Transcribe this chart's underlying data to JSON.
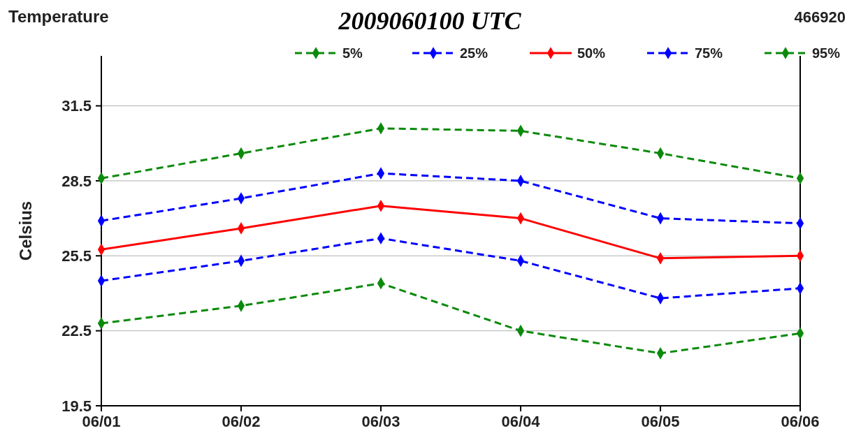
{
  "chart_data": {
    "type": "line",
    "title": "2009060100 UTC",
    "ylabel": "Celsius",
    "annotations": [
      "Temperature",
      "466920"
    ],
    "categories": [
      "06/01",
      "06/02",
      "06/03",
      "06/04",
      "06/05",
      "06/06"
    ],
    "series": [
      {
        "name": "5%",
        "color": "#0b8a0b",
        "line_style": "dashed",
        "values": [
          22.8,
          23.5,
          24.4,
          22.5,
          21.6,
          22.4
        ]
      },
      {
        "name": "25%",
        "color": "#0000ff",
        "line_style": "dashed",
        "values": [
          24.5,
          25.3,
          26.2,
          25.3,
          23.8,
          24.2
        ]
      },
      {
        "name": "50%",
        "color": "#ff0000",
        "line_style": "solid",
        "values": [
          25.75,
          26.6,
          27.5,
          27.0,
          25.4,
          25.5
        ]
      },
      {
        "name": "75%",
        "color": "#0000ff",
        "line_style": "dashed",
        "values": [
          26.9,
          27.8,
          28.8,
          28.5,
          27.0,
          26.8
        ]
      },
      {
        "name": "95%",
        "color": "#0b8a0b",
        "line_style": "dashed",
        "values": [
          28.6,
          29.6,
          30.6,
          30.5,
          29.6,
          28.6
        ]
      }
    ],
    "ylim": [
      19.5,
      33.5
    ],
    "yticks": [
      19.5,
      22.5,
      25.5,
      28.5,
      31.5
    ],
    "grid": "y",
    "legend": "top",
    "marker": "diamond"
  }
}
